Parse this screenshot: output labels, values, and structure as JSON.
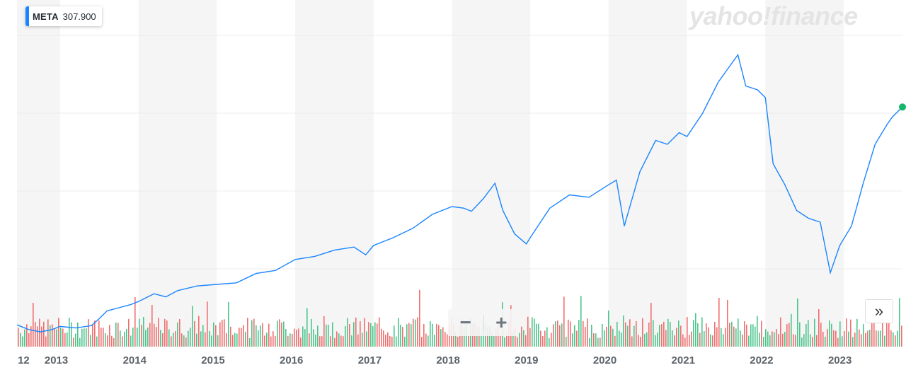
{
  "badge": {
    "symbol": "META",
    "price": "307.900"
  },
  "brand": {
    "text": "yahoo!finance"
  },
  "controls": {
    "zoom_out": "−",
    "zoom_in": "+",
    "expand": "»"
  },
  "colors": {
    "line": "#1a85ff",
    "vol_up": "#4cc58c",
    "vol_down": "#ef6f6f",
    "band": "#f5f5f5",
    "grid": "#ececec",
    "marker": "#14b86b"
  },
  "chart_data": {
    "type": "line",
    "title": "",
    "xlabel": "",
    "ylabel": "",
    "x_ticks": [
      "12",
      "2013",
      "2014",
      "2015",
      "2016",
      "2017",
      "2018",
      "2019",
      "2020",
      "2021",
      "2022",
      "2023"
    ],
    "x_domain": [
      2012.45,
      2023.75
    ],
    "ylim": [
      0,
      400
    ],
    "series": [
      {
        "name": "META",
        "x": [
          2012.45,
          2012.6,
          2012.75,
          2012.9,
          2013.0,
          2013.2,
          2013.4,
          2013.5,
          2013.6,
          2013.75,
          2013.9,
          2014.0,
          2014.2,
          2014.35,
          2014.5,
          2014.75,
          2015.0,
          2015.25,
          2015.5,
          2015.75,
          2016.0,
          2016.25,
          2016.5,
          2016.75,
          2016.9,
          2017.0,
          2017.25,
          2017.5,
          2017.75,
          2018.0,
          2018.15,
          2018.25,
          2018.4,
          2018.55,
          2018.65,
          2018.8,
          2018.95,
          2019.0,
          2019.25,
          2019.5,
          2019.75,
          2020.0,
          2020.1,
          2020.2,
          2020.4,
          2020.6,
          2020.75,
          2020.9,
          2021.0,
          2021.2,
          2021.4,
          2021.65,
          2021.75,
          2021.9,
          2022.0,
          2022.1,
          2022.25,
          2022.4,
          2022.55,
          2022.7,
          2022.83,
          2022.95,
          2023.1,
          2023.25,
          2023.4,
          2023.55,
          2023.62,
          2023.75
        ],
        "y": [
          28,
          22,
          19,
          22,
          26,
          24,
          27,
          36,
          46,
          50,
          54,
          58,
          68,
          64,
          72,
          78,
          80,
          82,
          94,
          98,
          112,
          116,
          124,
          128,
          118,
          130,
          140,
          152,
          170,
          180,
          178,
          174,
          190,
          210,
          175,
          145,
          132,
          140,
          178,
          195,
          192,
          208,
          214,
          155,
          225,
          265,
          260,
          275,
          270,
          300,
          340,
          375,
          335,
          330,
          320,
          235,
          208,
          175,
          165,
          160,
          95,
          130,
          155,
          210,
          260,
          285,
          295,
          308
        ]
      }
    ],
    "last_value": 307.9,
    "volume": {
      "note": "volume bars along the bottom, shown in green (up) and red (down)"
    }
  }
}
